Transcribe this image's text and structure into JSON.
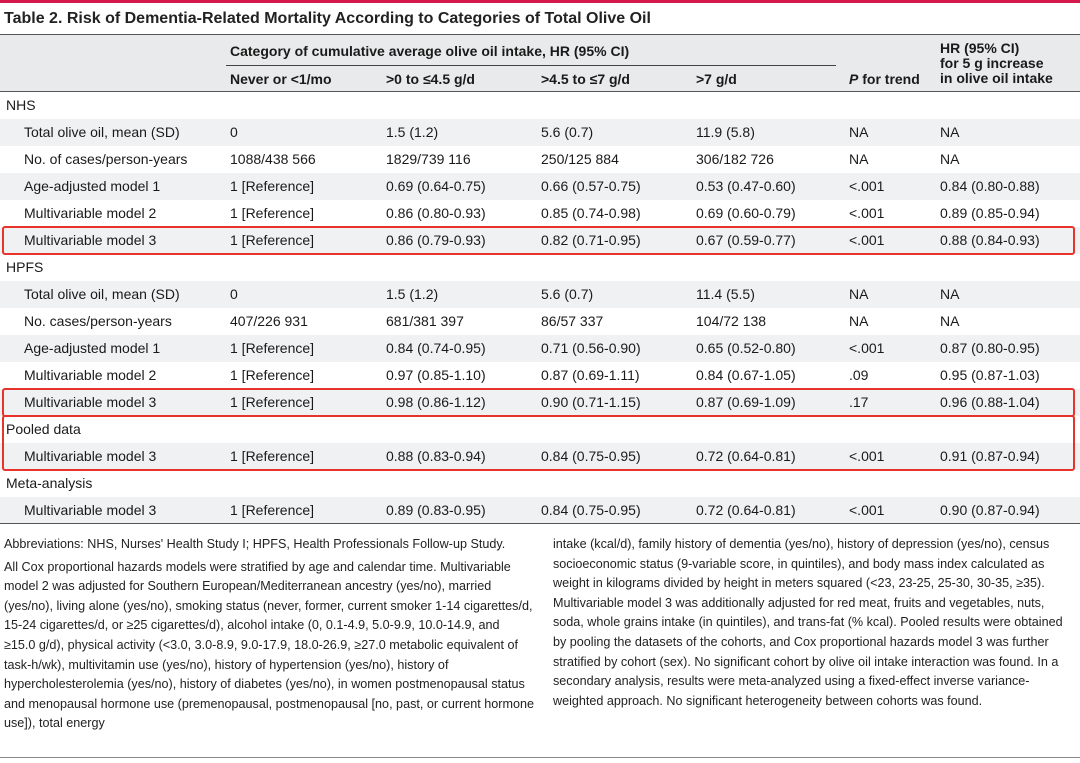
{
  "table": {
    "title": "Table 2. Risk of Dementia-Related Mortality According to Categories of Total Olive Oil",
    "group_header": "Category of cumulative average olive oil intake, HR (95% CI)",
    "columns": [
      "Never or <1/mo",
      ">0 to ≤4.5 g/d",
      ">4.5 to ≤7 g/d",
      ">7 g/d"
    ],
    "p_trend_italic": "P",
    "p_trend_rest": " for trend",
    "hr_header": [
      "HR (95% CI)",
      "for 5 g increase",
      "in olive oil intake"
    ],
    "sections": [
      {
        "name": "NHS",
        "rows": [
          {
            "label": "Total olive oil, mean (SD)",
            "cells": [
              "0",
              "1.5 (1.2)",
              "5.6 (0.7)",
              "11.9 (5.8)",
              "NA",
              "NA"
            ]
          },
          {
            "label": "No. of cases/person-years",
            "cells": [
              "1088/438 566",
              "1829/739 116",
              "250/125 884",
              "306/182 726",
              "NA",
              "NA"
            ]
          },
          {
            "label": "Age-adjusted model 1",
            "cells": [
              "1 [Reference]",
              "0.69 (0.64-0.75)",
              "0.66 (0.57-0.75)",
              "0.53 (0.47-0.60)",
              "<.001",
              "0.84 (0.80-0.88)"
            ]
          },
          {
            "label": "Multivariable model 2",
            "cells": [
              "1 [Reference]",
              "0.86 (0.80-0.93)",
              "0.85 (0.74-0.98)",
              "0.69 (0.60-0.79)",
              "<.001",
              "0.89 (0.85-0.94)"
            ]
          },
          {
            "label": "Multivariable model 3",
            "cells": [
              "1 [Reference]",
              "0.86 (0.79-0.93)",
              "0.82 (0.71-0.95)",
              "0.67 (0.59-0.77)",
              "<.001",
              "0.88 (0.84-0.93)"
            ]
          }
        ]
      },
      {
        "name": "HPFS",
        "rows": [
          {
            "label": "Total olive oil, mean (SD)",
            "cells": [
              "0",
              "1.5 (1.2)",
              "5.6 (0.7)",
              "11.4 (5.5)",
              "NA",
              "NA"
            ]
          },
          {
            "label": "No. cases/person-years",
            "cells": [
              "407/226 931",
              "681/381 397",
              "86/57 337",
              "104/72 138",
              "NA",
              "NA"
            ]
          },
          {
            "label": "Age-adjusted model 1",
            "cells": [
              "1 [Reference]",
              "0.84 (0.74-0.95)",
              "0.71 (0.56-0.90)",
              "0.65 (0.52-0.80)",
              "<.001",
              "0.87 (0.80-0.95)"
            ]
          },
          {
            "label": "Multivariable model 2",
            "cells": [
              "1 [Reference]",
              "0.97 (0.85-1.10)",
              "0.87 (0.69-1.11)",
              "0.84 (0.67-1.05)",
              ".09",
              "0.95 (0.87-1.03)"
            ]
          },
          {
            "label": "Multivariable model 3",
            "cells": [
              "1 [Reference]",
              "0.98 (0.86-1.12)",
              "0.90 (0.71-1.15)",
              "0.87 (0.69-1.09)",
              ".17",
              "0.96 (0.88-1.04)"
            ]
          }
        ]
      },
      {
        "name": "Pooled data",
        "rows": [
          {
            "label": "Multivariable model 3",
            "cells": [
              "1 [Reference]",
              "0.88 (0.83-0.94)",
              "0.84 (0.75-0.95)",
              "0.72 (0.64-0.81)",
              "<.001",
              "0.91 (0.87-0.94)"
            ]
          }
        ]
      },
      {
        "name": "Meta-analysis",
        "rows": [
          {
            "label": "Multivariable model 3",
            "cells": [
              "1 [Reference]",
              "0.89 (0.83-0.95)",
              "0.84 (0.75-0.95)",
              "0.72 (0.64-0.81)",
              "<.001",
              "0.90 (0.87-0.94)"
            ]
          }
        ]
      }
    ],
    "highlight_color": "#e8322c",
    "accent_color": "#d6194d"
  },
  "notes": {
    "abbreviations": "Abbreviations: NHS, Nurses' Health Study I; HPFS, Health Professionals Follow-up Study.",
    "left_text": "All Cox proportional hazards models were stratified by age and calendar time. Multivariable model 2 was adjusted for Southern European/Mediterranean ancestry (yes/no), married (yes/no), living alone (yes/no), smoking status (never, former, current smoker 1-14 cigarettes/d, 15-24 cigarettes/d, or ≥25 cigarettes/d), alcohol intake (0, 0.1-4.9, 5.0-9.9, 10.0-14.9, and ≥15.0 g/d), physical activity (<3.0, 3.0-8.9, 9.0-17.9, 18.0-26.9, ≥27.0 metabolic equivalent of task-h/wk), multivitamin use (yes/no), history of hypertension (yes/no), history of hypercholesterolemia (yes/no), history of diabetes (yes/no), in women postmenopausal status and menopausal hormone use (premenopausal, postmenopausal [no, past, or current hormone use]), total energy",
    "right_text": "intake (kcal/d), family history of dementia (yes/no), history of depression (yes/no), census socioeconomic status (9-variable score, in quintiles), and body mass index calculated as weight in kilograms divided by height in meters squared (<23, 23-25, 25-30, 30-35, ≥35). Multivariable model 3 was additionally adjusted for red meat, fruits and vegetables, nuts, soda, whole grains intake (in quintiles), and trans-fat (% kcal). Pooled results were obtained by pooling the datasets of the cohorts, and Cox proportional hazards model 3 was further stratified by cohort (sex). No significant cohort by olive oil intake interaction was found. In a secondary analysis, results were meta-analyzed using a fixed-effect inverse variance-weighted approach. No significant heterogeneity between cohorts was found."
  }
}
